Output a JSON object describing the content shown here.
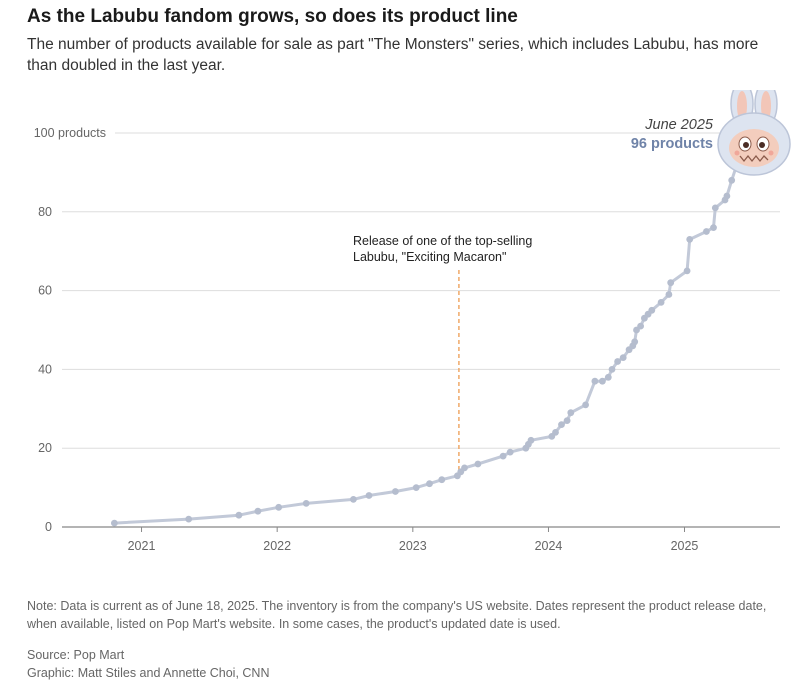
{
  "header": {
    "title": "As the Labubu fandom grows, so does its product line",
    "subtitle": "The number of products available for sale as part \"The Monsters\" series, which includes Labubu, has more than doubled in the last year."
  },
  "footer": {
    "note": "Note: Data is current as of June 18, 2025. The inventory is from the company's US website. Dates represent the product release date, when available, listed on Pop Mart's website. In some cases, the product's updated date is used.",
    "source": "Source: Pop Mart",
    "credit": "Graphic: Matt Stiles and Annette Choi, CNN"
  },
  "colors": {
    "line": "#c2c9d8",
    "marker": "#b5bdce",
    "annotation_line": "#f0a868",
    "highlight_text": "#6f83a8",
    "grid": "#dddddd",
    "axis": "#888888"
  },
  "chart_data": {
    "type": "line",
    "title": "",
    "xlabel": "",
    "ylabel": "",
    "x_ticks": [
      "2021",
      "2022",
      "2023",
      "2024",
      "2025"
    ],
    "y_ticks": [
      "0",
      "20",
      "40",
      "60",
      "80",
      "100 products"
    ],
    "ylim": [
      0,
      100
    ],
    "xlim": [
      "2020-06-01",
      "2025-09-15"
    ],
    "grid": true,
    "series": [
      {
        "points": [
          {
            "x": "2020-10-20",
            "y": 1
          },
          {
            "x": "2021-05-08",
            "y": 2
          },
          {
            "x": "2021-09-20",
            "y": 3
          },
          {
            "x": "2021-11-10",
            "y": 4
          },
          {
            "x": "2022-01-05",
            "y": 5
          },
          {
            "x": "2022-03-20",
            "y": 6
          },
          {
            "x": "2022-07-25",
            "y": 7
          },
          {
            "x": "2022-09-05",
            "y": 8
          },
          {
            "x": "2022-11-15",
            "y": 9
          },
          {
            "x": "2023-01-10",
            "y": 10
          },
          {
            "x": "2023-02-15",
            "y": 11
          },
          {
            "x": "2023-03-20",
            "y": 12
          },
          {
            "x": "2023-05-01",
            "y": 13
          },
          {
            "x": "2023-05-10",
            "y": 14
          },
          {
            "x": "2023-05-20",
            "y": 15
          },
          {
            "x": "2023-06-25",
            "y": 16
          },
          {
            "x": "2023-09-01",
            "y": 18
          },
          {
            "x": "2023-09-20",
            "y": 19
          },
          {
            "x": "2023-11-01",
            "y": 20
          },
          {
            "x": "2023-11-08",
            "y": 21
          },
          {
            "x": "2023-11-15",
            "y": 22
          },
          {
            "x": "2024-01-10",
            "y": 23
          },
          {
            "x": "2024-01-20",
            "y": 24
          },
          {
            "x": "2024-02-05",
            "y": 26
          },
          {
            "x": "2024-02-20",
            "y": 27
          },
          {
            "x": "2024-03-01",
            "y": 29
          },
          {
            "x": "2024-04-10",
            "y": 31
          },
          {
            "x": "2024-05-05",
            "y": 37
          },
          {
            "x": "2024-05-25",
            "y": 37
          },
          {
            "x": "2024-06-10",
            "y": 38
          },
          {
            "x": "2024-06-20",
            "y": 40
          },
          {
            "x": "2024-07-05",
            "y": 42
          },
          {
            "x": "2024-07-20",
            "y": 43
          },
          {
            "x": "2024-08-05",
            "y": 45
          },
          {
            "x": "2024-08-15",
            "y": 46
          },
          {
            "x": "2024-08-20",
            "y": 47
          },
          {
            "x": "2024-08-25",
            "y": 50
          },
          {
            "x": "2024-09-05",
            "y": 51
          },
          {
            "x": "2024-09-15",
            "y": 53
          },
          {
            "x": "2024-09-25",
            "y": 54
          },
          {
            "x": "2024-10-05",
            "y": 55
          },
          {
            "x": "2024-10-30",
            "y": 57
          },
          {
            "x": "2024-11-20",
            "y": 59
          },
          {
            "x": "2024-11-25",
            "y": 62
          },
          {
            "x": "2025-01-08",
            "y": 65
          },
          {
            "x": "2025-01-15",
            "y": 73
          },
          {
            "x": "2025-03-01",
            "y": 75
          },
          {
            "x": "2025-03-20",
            "y": 76
          },
          {
            "x": "2025-03-25",
            "y": 81
          },
          {
            "x": "2025-04-20",
            "y": 83
          },
          {
            "x": "2025-04-25",
            "y": 84
          },
          {
            "x": "2025-05-08",
            "y": 88
          },
          {
            "x": "2025-06-05",
            "y": 96
          }
        ]
      }
    ],
    "annotations": [
      {
        "x": "2023-05-05",
        "text_line1": "Release of one of the top-selling",
        "text_line2": "Labubu, \"Exciting Macaron\""
      }
    ],
    "callout": {
      "date_label": "June 2025",
      "value_label": "96 products",
      "x": "2025-06-05",
      "y": 96
    }
  }
}
